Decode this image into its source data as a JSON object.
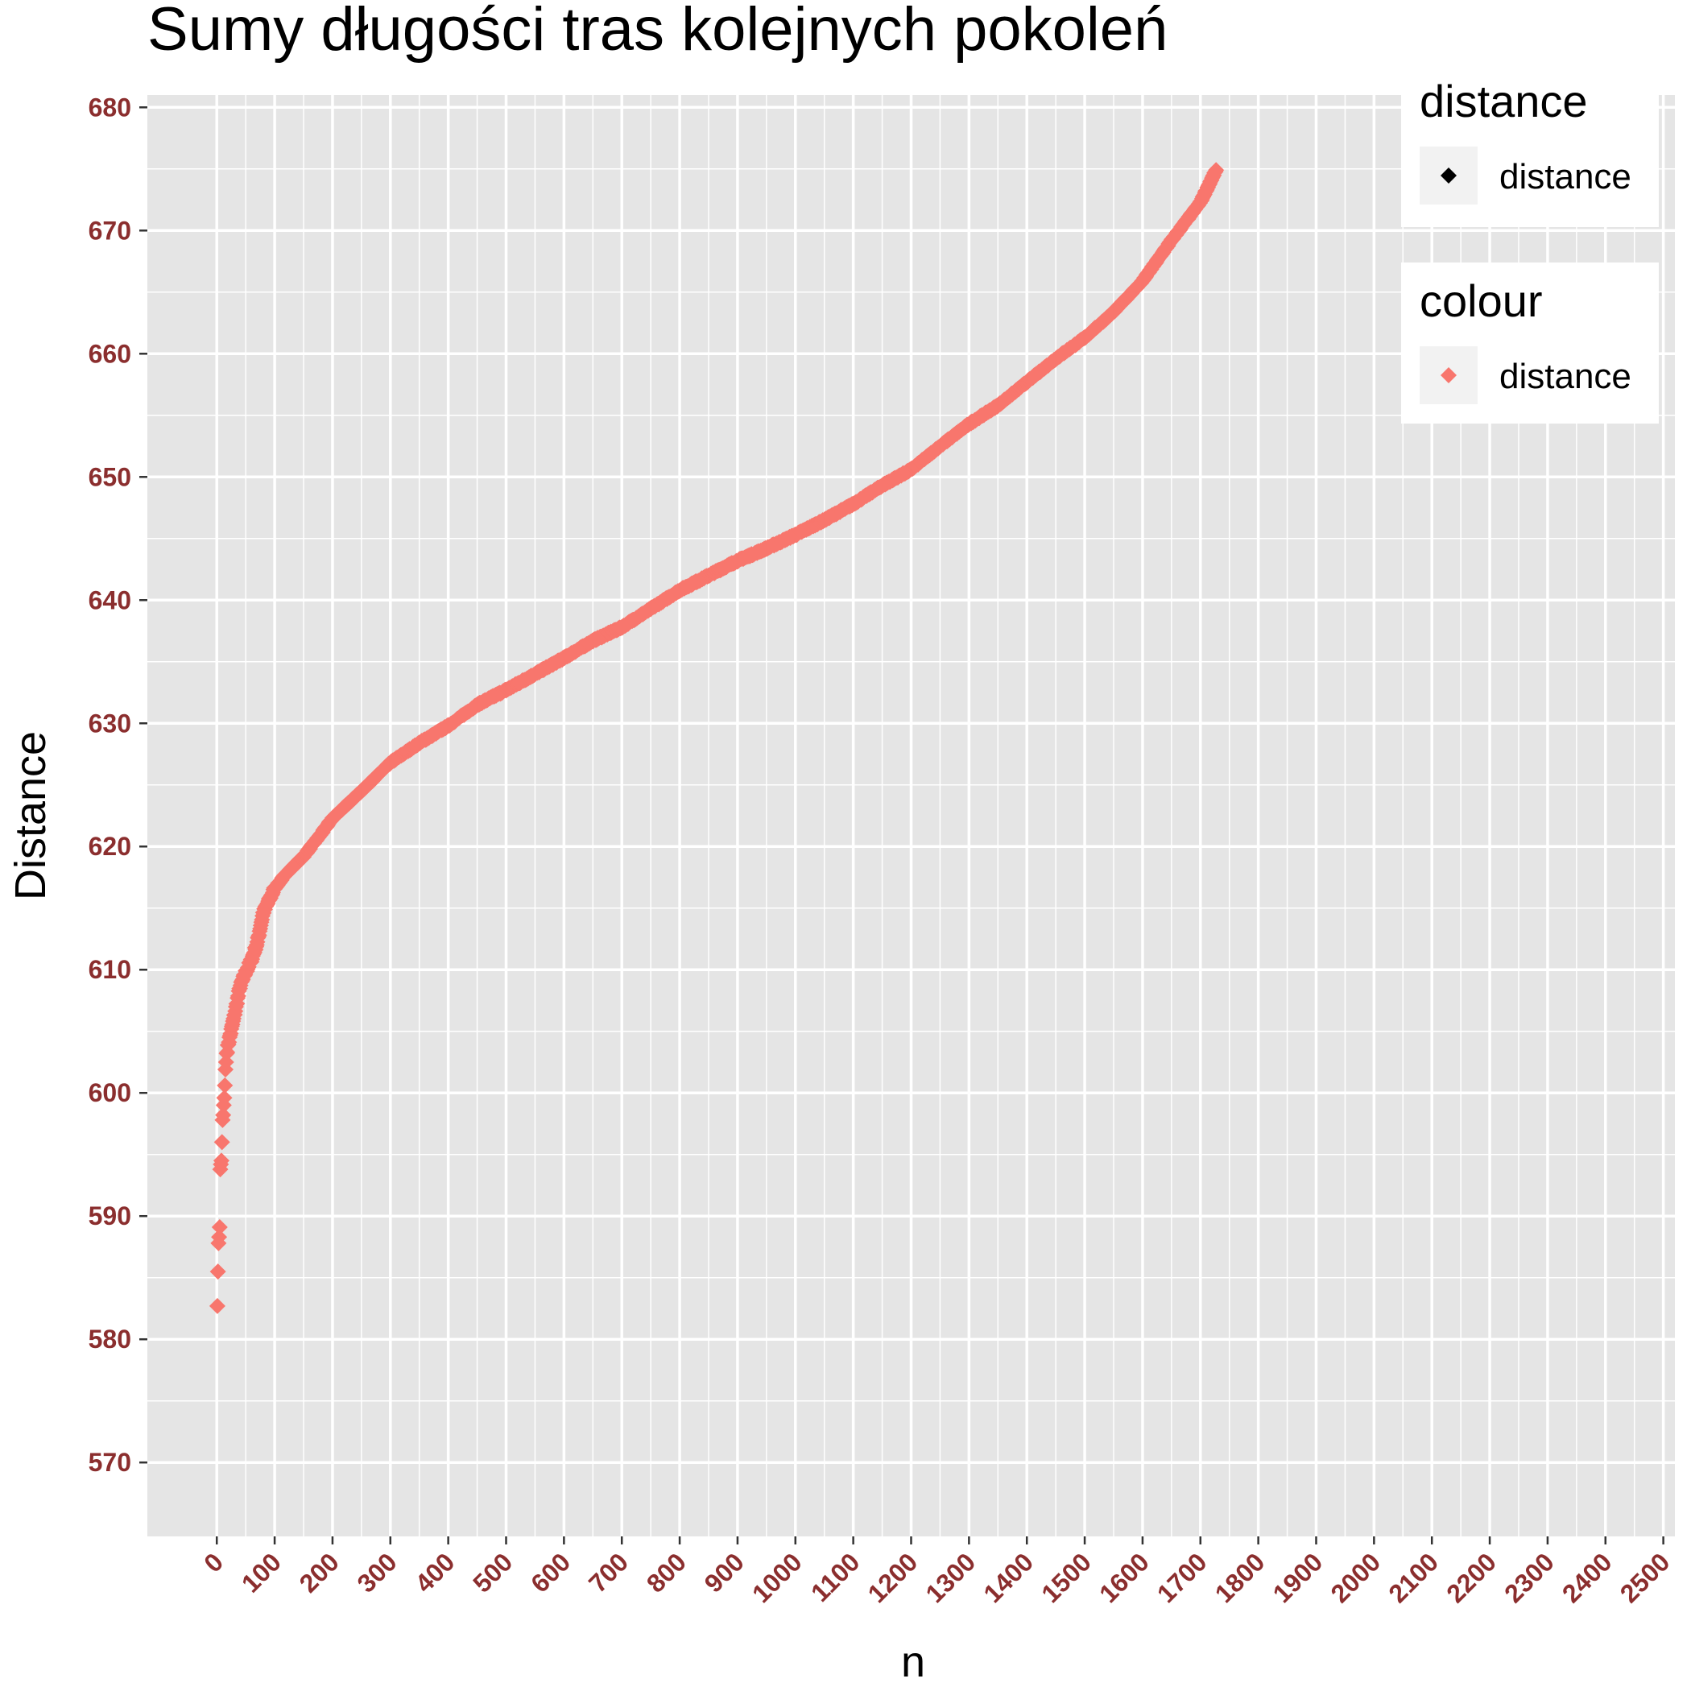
{
  "colors": {
    "panel": "#E5E5E5",
    "grid": "#FFFFFF",
    "point": "#F8766D",
    "tick_label": "#8B2E2E",
    "tick_mark": "#333333",
    "legend_key_bg": "#F2F2F2",
    "legend_black_key": "#000000"
  },
  "icons": {
    "point_marker": "diamond"
  },
  "legend": {
    "placement": "top-right",
    "groups": [
      {
        "title": "distance",
        "label": "distance",
        "key_color": "#000000"
      },
      {
        "title": "colour",
        "label": "distance",
        "key_color": "#F8766D"
      }
    ]
  },
  "chart_data": {
    "type": "scatter",
    "title": "Sumy długości tras kolejnych pokoleń",
    "xlabel": "n",
    "ylabel": "Distance",
    "xlim": [
      -120,
      2520
    ],
    "ylim": [
      564,
      681
    ],
    "grid": true,
    "x_ticks": [
      0,
      100,
      200,
      300,
      400,
      500,
      600,
      700,
      800,
      900,
      1000,
      1100,
      1200,
      1300,
      1400,
      1500,
      1600,
      1700,
      1800,
      1900,
      2000,
      2100,
      2200,
      2300,
      2400,
      2500
    ],
    "y_ticks": [
      570,
      580,
      590,
      600,
      610,
      620,
      630,
      640,
      650,
      660,
      670,
      680
    ],
    "series": [
      {
        "name": "distance",
        "n_points": 1727,
        "start_points": [
          [
            1,
            582.7
          ],
          [
            2,
            585.5
          ],
          [
            3,
            587.8
          ],
          [
            4,
            588.3
          ],
          [
            5,
            589.1
          ],
          [
            6,
            593.8
          ],
          [
            7,
            594.2
          ],
          [
            8,
            594.5
          ],
          [
            9,
            596.0
          ],
          [
            10,
            597.8
          ],
          [
            11,
            598.2
          ],
          [
            12,
            599.0
          ],
          [
            13,
            599.6
          ],
          [
            14,
            600.6
          ],
          [
            15,
            601.9
          ],
          [
            16,
            602.5
          ],
          [
            17,
            603.2
          ]
        ],
        "key_points": [
          [
            20,
            604.0
          ],
          [
            30,
            606.2
          ],
          [
            40,
            608.6
          ],
          [
            50,
            609.8
          ],
          [
            60,
            610.8
          ],
          [
            70,
            612.2
          ],
          [
            80,
            614.6
          ],
          [
            90,
            615.6
          ],
          [
            100,
            616.6
          ],
          [
            120,
            617.8
          ],
          [
            150,
            619.2
          ],
          [
            180,
            621.0
          ],
          [
            200,
            622.3
          ],
          [
            250,
            624.5
          ],
          [
            300,
            626.8
          ],
          [
            350,
            628.4
          ],
          [
            400,
            629.8
          ],
          [
            450,
            631.5
          ],
          [
            500,
            632.7
          ],
          [
            550,
            634.0
          ],
          [
            600,
            635.3
          ],
          [
            650,
            636.7
          ],
          [
            700,
            637.8
          ],
          [
            750,
            639.3
          ],
          [
            800,
            640.8
          ],
          [
            850,
            642.0
          ],
          [
            900,
            643.2
          ],
          [
            950,
            644.2
          ],
          [
            1000,
            645.3
          ],
          [
            1050,
            646.5
          ],
          [
            1100,
            647.8
          ],
          [
            1150,
            649.3
          ],
          [
            1200,
            650.6
          ],
          [
            1250,
            652.5
          ],
          [
            1300,
            654.3
          ],
          [
            1350,
            655.8
          ],
          [
            1400,
            657.7
          ],
          [
            1450,
            659.6
          ],
          [
            1500,
            661.3
          ],
          [
            1550,
            663.4
          ],
          [
            1600,
            665.9
          ],
          [
            1650,
            669.2
          ],
          [
            1700,
            672.3
          ],
          [
            1727,
            674.9
          ]
        ]
      }
    ]
  }
}
